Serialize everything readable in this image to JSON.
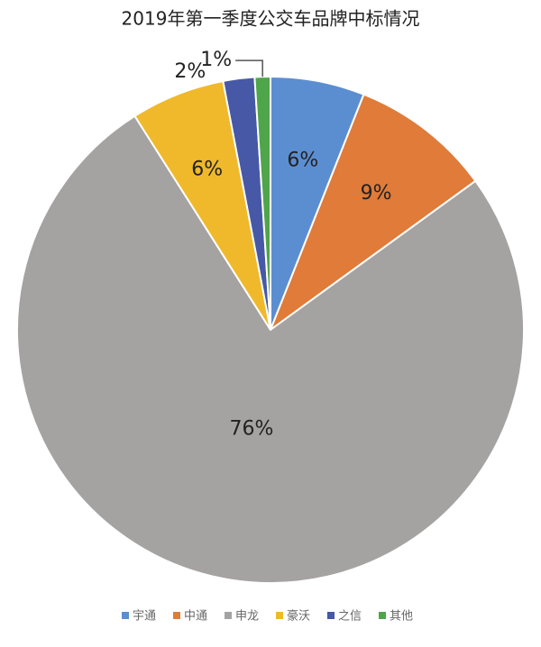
{
  "chart_data": {
    "type": "pie",
    "title": "2019年第一季度公交车品牌中标情况",
    "categories": [
      "宇通",
      "中通",
      "申龙",
      "豪沃",
      "之信",
      "其他"
    ],
    "values": [
      6,
      9,
      76,
      6,
      2,
      1
    ],
    "value_labels": [
      "6%",
      "9%",
      "76%",
      "6%",
      "2%",
      "1%"
    ],
    "colors": [
      "#5b8ed1",
      "#e07b39",
      "#a5a2a2",
      "#efb92b",
      "#4658a6",
      "#4fa54a"
    ],
    "legend": "bottom"
  }
}
